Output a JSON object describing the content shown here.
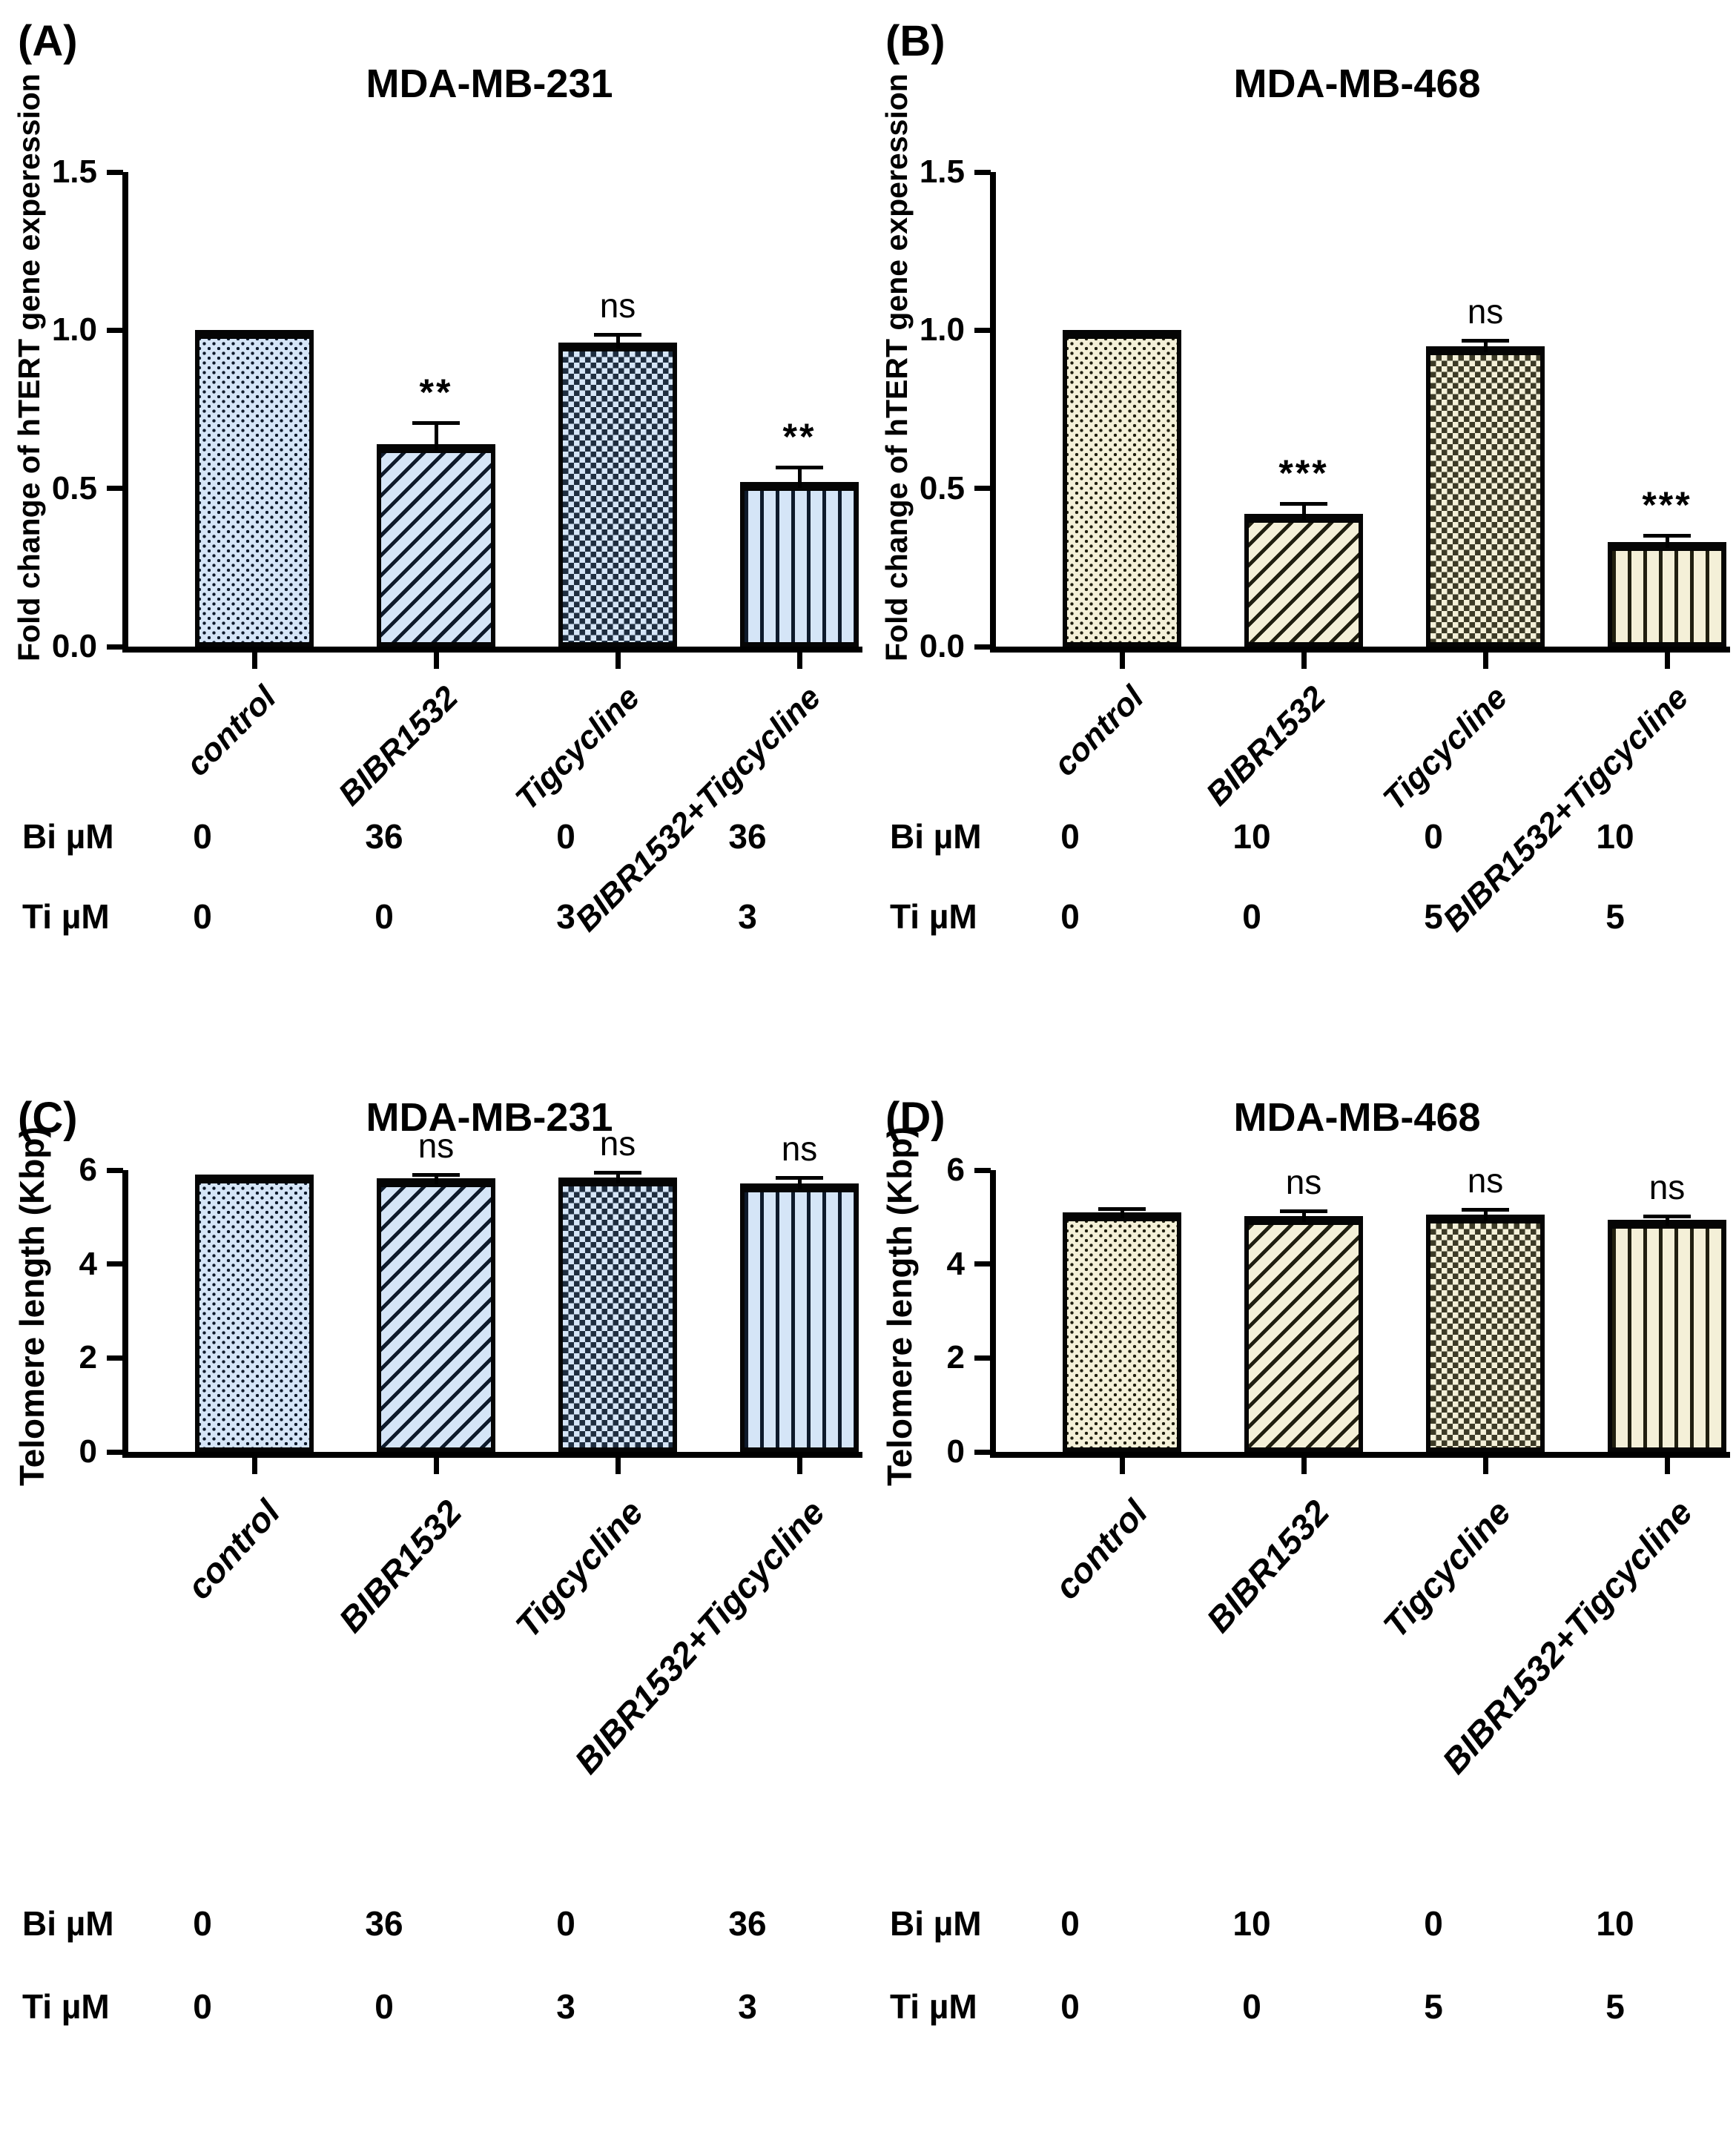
{
  "chart_data": [
    {
      "type": "bar",
      "panel_label": "(A)",
      "title": "MDA-MB-231",
      "ylabel": "Fold change of hTERT gene experession",
      "xlabel": "",
      "ylim": [
        0,
        1.5
      ],
      "ytick_labels": [
        "0.0",
        "0.5",
        "1.0",
        "1.5"
      ],
      "categories": [
        "control",
        "BIBR1532",
        "Tigcycline",
        "BIBR1532+Tigcycline"
      ],
      "values": [
        1.0,
        0.64,
        0.96,
        0.52
      ],
      "errors": [
        0,
        0.06,
        0.02,
        0.04
      ],
      "significance": [
        "",
        "**",
        "ns",
        "**"
      ],
      "patterns": [
        "v-dots",
        "diagonal-stripes",
        "checkerboard",
        "vertical-stripes"
      ],
      "theme": "blue",
      "grid": false,
      "legend": null,
      "dose_table": {
        "rows": [
          {
            "label": "Bi µM",
            "values": [
              "0",
              "36",
              "0",
              "36"
            ]
          },
          {
            "label": "Ti µM",
            "values": [
              "0",
              "0",
              "3",
              "3"
            ]
          }
        ]
      }
    },
    {
      "type": "bar",
      "panel_label": "(B)",
      "title": "MDA-MB-468",
      "ylabel": "Fold change of hTERT gene experession",
      "xlabel": "",
      "ylim": [
        0,
        1.5
      ],
      "ytick_labels": [
        "0.0",
        "0.5",
        "1.0",
        "1.5"
      ],
      "categories": [
        "control",
        "BIBR1532",
        "Tigcycline",
        "BIBR1532+Tigcycline"
      ],
      "values": [
        1.0,
        0.42,
        0.95,
        0.33
      ],
      "errors": [
        0,
        0.025,
        0.012,
        0.015
      ],
      "significance": [
        "",
        "***",
        "ns",
        "***"
      ],
      "patterns": [
        "v-dots",
        "diagonal-stripes",
        "checkerboard",
        "vertical-stripes"
      ],
      "theme": "cream",
      "grid": false,
      "legend": null,
      "dose_table": {
        "rows": [
          {
            "label": "Bi µM",
            "values": [
              "0",
              "10",
              "0",
              "10"
            ]
          },
          {
            "label": "Ti µM",
            "values": [
              "0",
              "0",
              "5",
              "5"
            ]
          }
        ]
      }
    },
    {
      "type": "bar",
      "panel_label": "(C)",
      "title": "MDA-MB-231",
      "ylabel": "Telomere length (Kbp)",
      "xlabel": "",
      "ylim": [
        0,
        6
      ],
      "ytick_labels": [
        "0",
        "2",
        "4",
        "6"
      ],
      "categories": [
        "control",
        "BIBR1532",
        "Tigcycline",
        "BIBR1532+Tigcycline"
      ],
      "values": [
        5.9,
        5.82,
        5.85,
        5.72
      ],
      "errors": [
        0,
        0.04,
        0.05,
        0.07
      ],
      "significance": [
        "",
        "ns",
        "ns",
        "ns"
      ],
      "patterns": [
        "v-dots",
        "diagonal-stripes",
        "checkerboard",
        "vertical-stripes"
      ],
      "theme": "blue",
      "grid": false,
      "legend": null,
      "dose_table": {
        "rows": [
          {
            "label": "Bi µM",
            "values": [
              "0",
              "36",
              "0",
              "36"
            ]
          },
          {
            "label": "Ti µM",
            "values": [
              "0",
              "0",
              "3",
              "3"
            ]
          }
        ]
      }
    },
    {
      "type": "bar",
      "panel_label": "(D)",
      "title": "MDA-MB-468",
      "ylabel": "Telomere length (Kbp)",
      "xlabel": "",
      "ylim": [
        0,
        6
      ],
      "ytick_labels": [
        "0",
        "2",
        "4",
        "6"
      ],
      "categories": [
        "control",
        "BIBR1532",
        "Tigcycline",
        "BIBR1532+Tigcycline"
      ],
      "values": [
        5.1,
        5.02,
        5.05,
        4.95
      ],
      "errors": [
        0.03,
        0.06,
        0.07,
        0.03
      ],
      "significance": [
        "",
        "ns",
        "ns",
        "ns"
      ],
      "patterns": [
        "v-dots",
        "diagonal-stripes",
        "checkerboard",
        "vertical-stripes"
      ],
      "theme": "cream",
      "grid": false,
      "legend": null,
      "dose_table": {
        "rows": [
          {
            "label": "Bi µM",
            "values": [
              "0",
              "10",
              "0",
              "10"
            ]
          },
          {
            "label": "Ti µM",
            "values": [
              "0",
              "0",
              "5",
              "5"
            ]
          }
        ]
      }
    }
  ]
}
